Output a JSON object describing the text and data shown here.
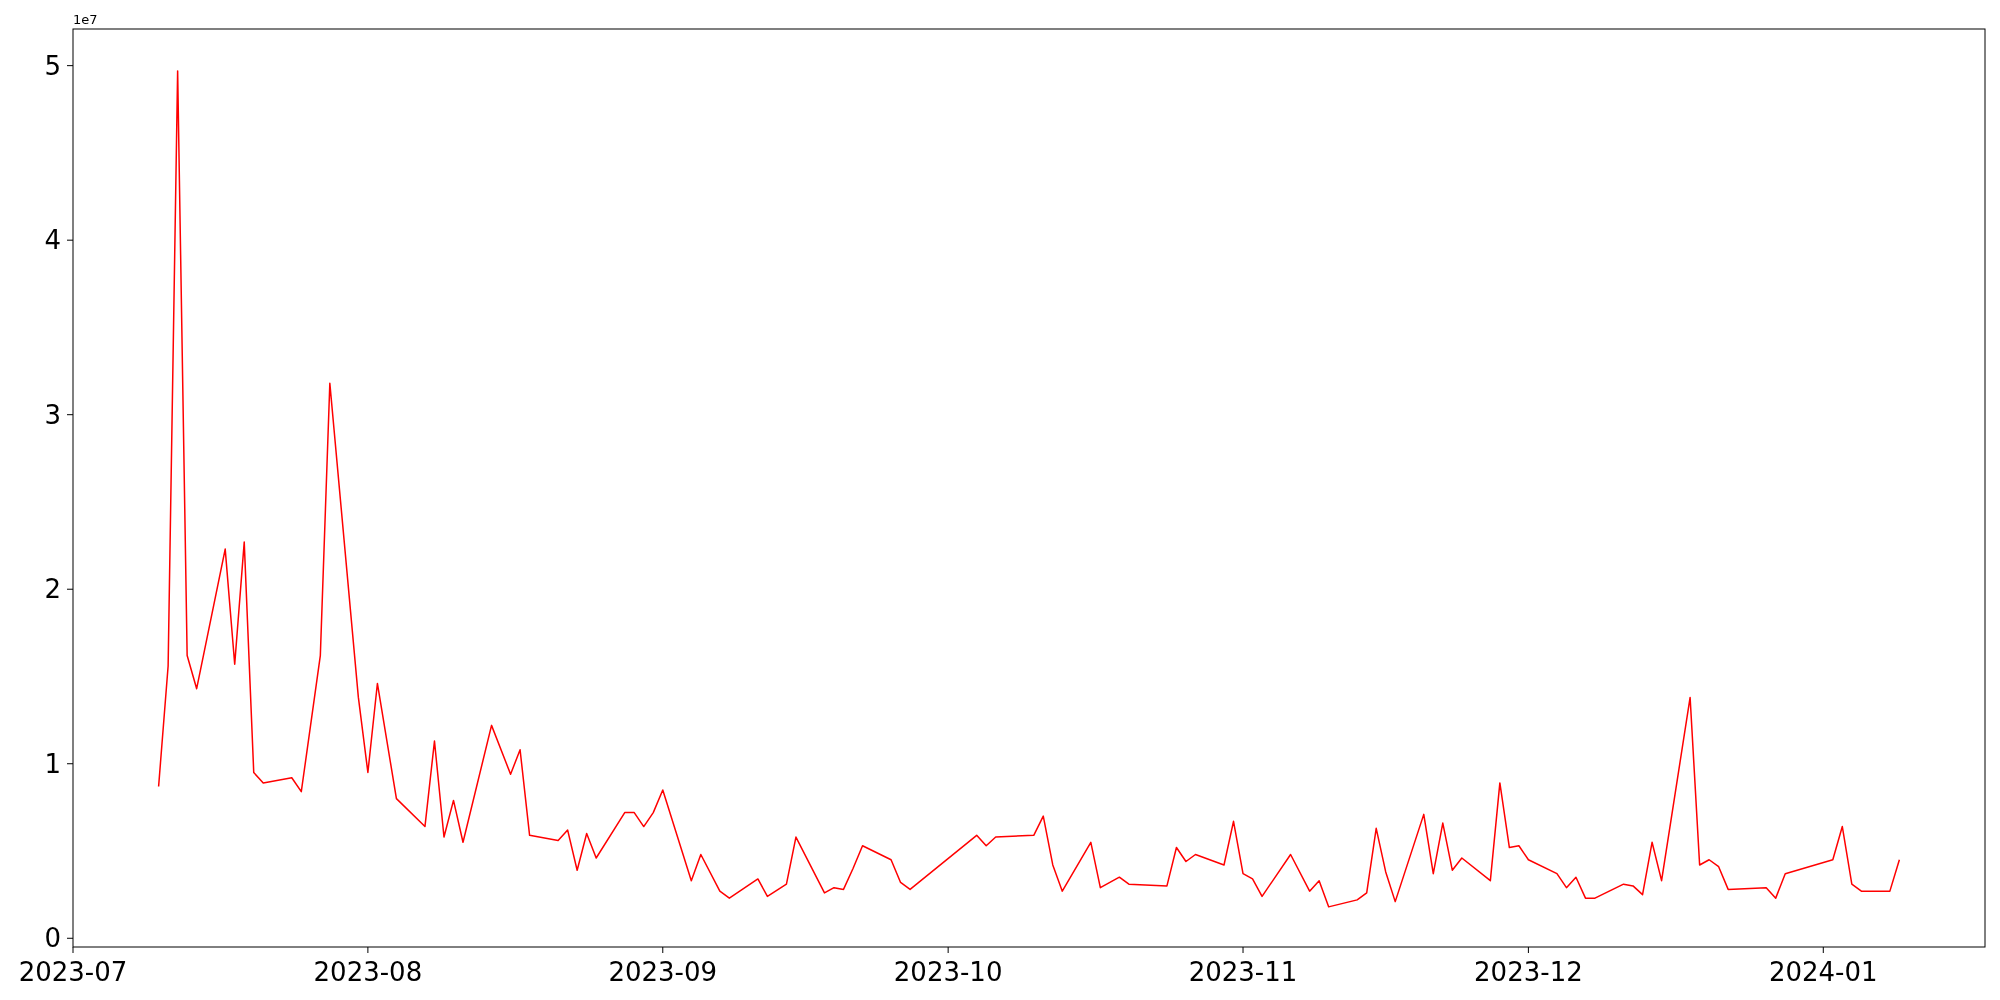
{
  "chart_data": {
    "type": "line",
    "annotations": [
      "1e7"
    ],
    "xlim": [
      "2023-07-01",
      "2024-01-18"
    ],
    "xticks": [
      "2023-07",
      "2023-08",
      "2023-09",
      "2023-10",
      "2023-11",
      "2023-12",
      "2024-01"
    ],
    "ylim": [
      -0.05,
      5.21
    ],
    "yticks": [
      0,
      1,
      2,
      3,
      4,
      5
    ],
    "grid": false,
    "marker": "none",
    "line_style": "solid",
    "x": [
      "2023-07-10",
      "2023-07-11",
      "2023-07-12",
      "2023-07-13",
      "2023-07-14",
      "2023-07-17",
      "2023-07-18",
      "2023-07-19",
      "2023-07-20",
      "2023-07-21",
      "2023-07-24",
      "2023-07-25",
      "2023-07-27",
      "2023-07-28",
      "2023-07-31",
      "2023-08-01",
      "2023-08-02",
      "2023-08-04",
      "2023-08-07",
      "2023-08-08",
      "2023-08-09",
      "2023-08-10",
      "2023-08-11",
      "2023-08-14",
      "2023-08-16",
      "2023-08-17",
      "2023-08-18",
      "2023-08-21",
      "2023-08-22",
      "2023-08-23",
      "2023-08-24",
      "2023-08-25",
      "2023-08-28",
      "2023-08-29",
      "2023-08-30",
      "2023-08-31",
      "2023-09-01",
      "2023-09-04",
      "2023-09-05",
      "2023-09-07",
      "2023-09-08",
      "2023-09-11",
      "2023-09-12",
      "2023-09-14",
      "2023-09-15",
      "2023-09-18",
      "2023-09-19",
      "2023-09-20",
      "2023-09-21",
      "2023-09-22",
      "2023-09-25",
      "2023-09-26",
      "2023-09-27",
      "2023-10-04",
      "2023-10-05",
      "2023-10-06",
      "2023-10-10",
      "2023-10-11",
      "2023-10-12",
      "2023-10-13",
      "2023-10-16",
      "2023-10-17",
      "2023-10-19",
      "2023-10-20",
      "2023-10-24",
      "2023-10-25",
      "2023-10-26",
      "2023-10-27",
      "2023-10-30",
      "2023-10-31",
      "2023-11-01",
      "2023-11-02",
      "2023-11-03",
      "2023-11-06",
      "2023-11-08",
      "2023-11-09",
      "2023-11-10",
      "2023-11-13",
      "2023-11-14",
      "2023-11-15",
      "2023-11-16",
      "2023-11-17",
      "2023-11-20",
      "2023-11-21",
      "2023-11-22",
      "2023-11-23",
      "2023-11-24",
      "2023-11-27",
      "2023-11-28",
      "2023-11-29",
      "2023-11-30",
      "2023-12-01",
      "2023-12-04",
      "2023-12-05",
      "2023-12-06",
      "2023-12-07",
      "2023-12-08",
      "2023-12-11",
      "2023-12-12",
      "2023-12-13",
      "2023-12-14",
      "2023-12-15",
      "2023-12-18",
      "2023-12-19",
      "2023-12-20",
      "2023-12-21",
      "2023-12-22",
      "2023-12-26",
      "2023-12-27",
      "2023-12-28",
      "2024-01-02",
      "2024-01-03",
      "2024-01-04",
      "2024-01-05",
      "2024-01-08",
      "2024-01-09"
    ],
    "series": [
      {
        "color": "#ff0000",
        "values": [
          0.87,
          1.56,
          4.97,
          1.62,
          1.43,
          2.23,
          1.57,
          2.27,
          0.95,
          0.89,
          0.92,
          0.84,
          1.62,
          3.18,
          1.38,
          0.95,
          1.46,
          0.8,
          0.64,
          1.13,
          0.58,
          0.79,
          0.55,
          1.22,
          0.94,
          1.08,
          0.59,
          0.56,
          0.62,
          0.39,
          0.6,
          0.46,
          0.72,
          0.72,
          0.64,
          0.72,
          0.85,
          0.33,
          0.48,
          0.27,
          0.23,
          0.34,
          0.24,
          0.31,
          0.58,
          0.26,
          0.29,
          0.28,
          0.4,
          0.53,
          0.45,
          0.32,
          0.28,
          0.59,
          0.53,
          0.58,
          0.59,
          0.7,
          0.42,
          0.27,
          0.55,
          0.29,
          0.35,
          0.31,
          0.3,
          0.52,
          0.44,
          0.48,
          0.42,
          0.67,
          0.37,
          0.34,
          0.24,
          0.48,
          0.27,
          0.33,
          0.18,
          0.22,
          0.26,
          0.63,
          0.38,
          0.21,
          0.71,
          0.37,
          0.66,
          0.39,
          0.46,
          0.33,
          0.89,
          0.52,
          0.53,
          0.45,
          0.37,
          0.29,
          0.35,
          0.23,
          0.23,
          0.31,
          0.3,
          0.25,
          0.55,
          0.33,
          1.38,
          0.42,
          0.45,
          0.41,
          0.28,
          0.29,
          0.23,
          0.37,
          0.45,
          0.64,
          0.31,
          0.27,
          0.27,
          0.45
        ]
      }
    ]
  }
}
